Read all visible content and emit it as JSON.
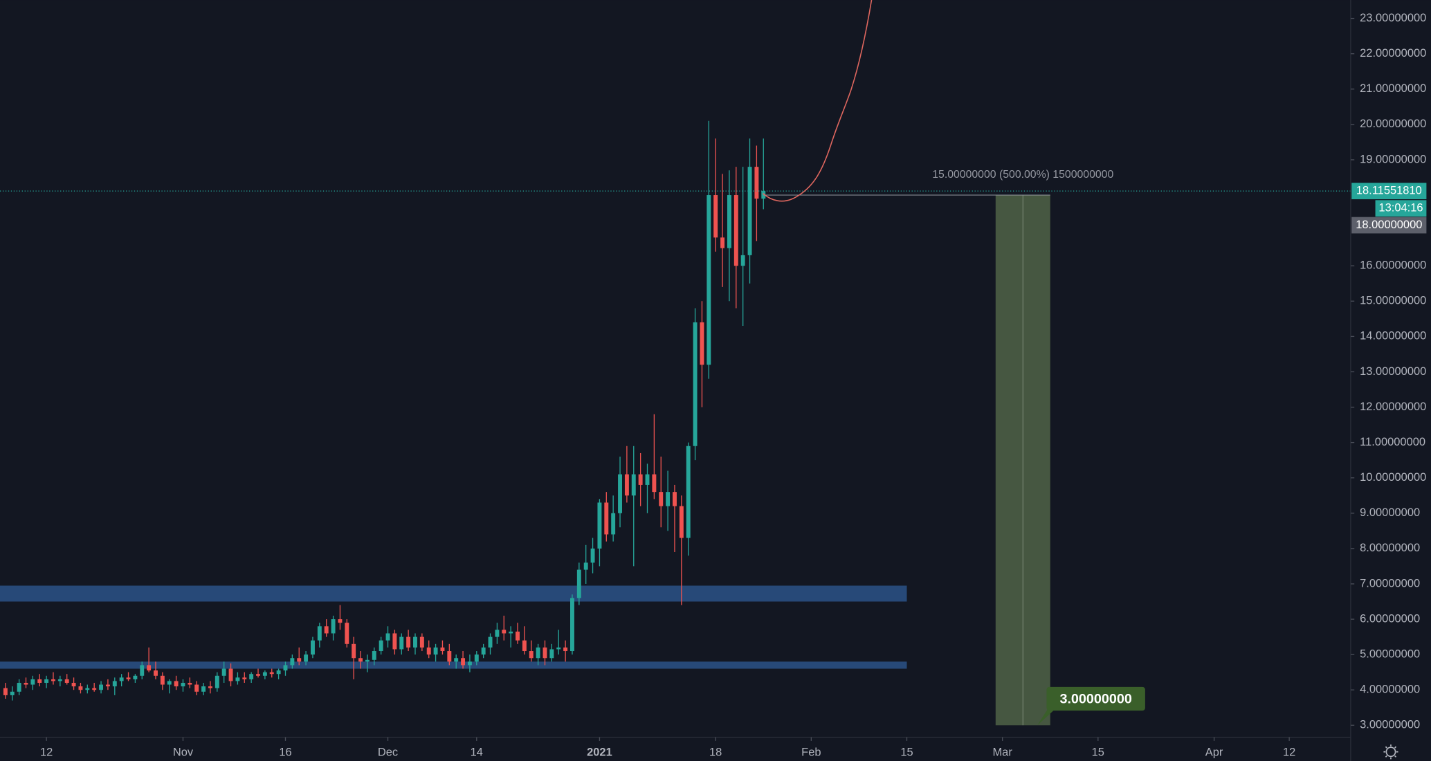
{
  "chart_data": {
    "type": "candlestick",
    "up_color": "#26a69a",
    "down_color": "#ef5350",
    "grid": false,
    "xlim": [
      -6.8,
      191
    ],
    "ylim": [
      2.66,
      23.52
    ],
    "yticks": [
      {
        "value": 3,
        "label": "3.00000000"
      },
      {
        "value": 4,
        "label": "4.00000000"
      },
      {
        "value": 5,
        "label": "5.00000000"
      },
      {
        "value": 6,
        "label": "6.00000000"
      },
      {
        "value": 7,
        "label": "7.00000000"
      },
      {
        "value": 8,
        "label": "8.00000000"
      },
      {
        "value": 9,
        "label": "9.00000000"
      },
      {
        "value": 10,
        "label": "10.00000000"
      },
      {
        "value": 11,
        "label": "11.00000000"
      },
      {
        "value": 12,
        "label": "12.00000000"
      },
      {
        "value": 13,
        "label": "13.00000000"
      },
      {
        "value": 14,
        "label": "14.00000000"
      },
      {
        "value": 15,
        "label": "15.00000000"
      },
      {
        "value": 16,
        "label": "16.00000000"
      },
      {
        "value": 19,
        "label": "19.00000000"
      },
      {
        "value": 20,
        "label": "20.00000000"
      },
      {
        "value": 21,
        "label": "21.00000000"
      },
      {
        "value": 22,
        "label": "22.00000000"
      },
      {
        "value": 23,
        "label": "23.00000000"
      }
    ],
    "xticks": [
      {
        "value": 0,
        "label": "12"
      },
      {
        "value": 20,
        "label": "Nov"
      },
      {
        "value": 35,
        "label": "16"
      },
      {
        "value": 50,
        "label": "Dec"
      },
      {
        "value": 63,
        "label": "14"
      },
      {
        "value": 81,
        "label": "2021"
      },
      {
        "value": 98,
        "label": "18"
      },
      {
        "value": 112,
        "label": "Feb"
      },
      {
        "value": 126,
        "label": "15"
      },
      {
        "value": 140,
        "label": "Mar"
      },
      {
        "value": 154,
        "label": "15"
      },
      {
        "value": 171,
        "label": "Apr"
      },
      {
        "value": 182,
        "label": "12"
      }
    ],
    "x": [
      -6,
      -5,
      -4,
      -3,
      -2,
      -1,
      0,
      1,
      2,
      3,
      4,
      5,
      6,
      7,
      8,
      9,
      10,
      11,
      12,
      13,
      14,
      15,
      16,
      17,
      18,
      19,
      20,
      21,
      22,
      23,
      24,
      25,
      26,
      27,
      28,
      29,
      30,
      31,
      32,
      33,
      34,
      35,
      36,
      37,
      38,
      39,
      40,
      41,
      42,
      43,
      44,
      45,
      46,
      47,
      48,
      49,
      50,
      51,
      52,
      53,
      54,
      55,
      56,
      57,
      58,
      59,
      60,
      61,
      62,
      63,
      64,
      65,
      66,
      67,
      68,
      69,
      70,
      71,
      72,
      73,
      74,
      75,
      76,
      77,
      78,
      79,
      80,
      81,
      82,
      83,
      84,
      85,
      86,
      87,
      88,
      89,
      90,
      91,
      92,
      93,
      94,
      95,
      96,
      97,
      98,
      99,
      100,
      101,
      102,
      103,
      104,
      105
    ],
    "open": [
      4.05,
      3.85,
      3.95,
      4.2,
      4.15,
      4.3,
      4.2,
      4.3,
      4.25,
      4.3,
      4.2,
      4.1,
      4.0,
      4.05,
      4.0,
      4.15,
      4.1,
      4.25,
      4.35,
      4.3,
      4.4,
      4.7,
      4.55,
      4.4,
      4.15,
      4.25,
      4.1,
      4.2,
      4.15,
      3.95,
      4.1,
      4.05,
      4.4,
      4.6,
      4.25,
      4.35,
      4.3,
      4.45,
      4.4,
      4.5,
      4.45,
      4.55,
      4.7,
      4.9,
      4.8,
      5.0,
      5.4,
      5.8,
      5.6,
      6.0,
      5.9,
      5.3,
      4.9,
      4.8,
      4.85,
      5.1,
      5.4,
      5.6,
      5.15,
      5.5,
      5.2,
      5.5,
      5.2,
      5.0,
      5.2,
      5.1,
      4.8,
      4.9,
      4.7,
      4.8,
      5.0,
      5.2,
      5.5,
      5.7,
      5.6,
      5.65,
      5.4,
      5.1,
      4.9,
      5.2,
      4.9,
      5.15,
      5.2,
      5.1,
      6.6,
      7.4,
      7.6,
      8.0,
      9.3,
      8.4,
      9.0,
      10.1,
      9.5,
      10.1,
      9.8,
      10.1,
      9.6,
      9.2,
      9.6,
      9.2,
      8.3,
      10.9,
      14.4,
      13.2,
      18.0,
      16.8,
      16.5,
      18.0,
      16.0,
      16.3,
      18.8,
      17.9
    ],
    "high": [
      4.2,
      4.1,
      4.3,
      4.35,
      4.4,
      4.45,
      4.4,
      4.5,
      4.4,
      4.45,
      4.35,
      4.2,
      4.15,
      4.2,
      4.25,
      4.3,
      4.35,
      4.45,
      4.5,
      4.45,
      4.8,
      5.2,
      4.8,
      4.5,
      4.3,
      4.4,
      4.3,
      4.35,
      4.25,
      4.2,
      4.25,
      4.5,
      4.8,
      4.75,
      4.5,
      4.5,
      4.5,
      4.6,
      4.55,
      4.6,
      4.6,
      4.8,
      5.0,
      5.2,
      5.1,
      5.5,
      5.9,
      6.0,
      6.1,
      6.4,
      6.0,
      5.5,
      5.1,
      5.0,
      5.2,
      5.5,
      5.8,
      5.7,
      5.6,
      5.7,
      5.6,
      5.6,
      5.4,
      5.3,
      5.4,
      5.3,
      5.0,
      5.1,
      5.0,
      5.1,
      5.3,
      5.6,
      5.9,
      6.1,
      5.8,
      5.9,
      5.8,
      5.4,
      5.3,
      5.4,
      5.3,
      5.7,
      5.4,
      6.7,
      7.6,
      8.1,
      8.3,
      9.4,
      9.6,
      9.5,
      10.6,
      10.9,
      10.9,
      10.7,
      10.4,
      11.8,
      10.6,
      10.2,
      9.8,
      9.5,
      11.0,
      14.8,
      15.0,
      20.1,
      19.6,
      18.6,
      18.7,
      18.8,
      18.8,
      19.6,
      19.4,
      19.6
    ],
    "low": [
      3.75,
      3.7,
      3.85,
      4.05,
      4.0,
      4.1,
      4.05,
      4.15,
      4.1,
      4.15,
      4.0,
      3.9,
      3.9,
      3.95,
      3.9,
      4.0,
      3.85,
      4.1,
      4.25,
      4.2,
      4.3,
      4.5,
      4.3,
      4.0,
      3.9,
      4.0,
      3.95,
      4.05,
      3.85,
      3.85,
      3.9,
      3.95,
      4.2,
      4.1,
      4.15,
      4.2,
      4.2,
      4.35,
      4.3,
      4.35,
      4.3,
      4.4,
      4.6,
      4.7,
      4.7,
      4.9,
      5.2,
      5.5,
      5.4,
      5.7,
      5.2,
      4.3,
      4.6,
      4.5,
      4.7,
      5.0,
      5.2,
      5.0,
      5.0,
      5.1,
      5.0,
      5.1,
      4.9,
      4.8,
      5.0,
      4.7,
      4.6,
      4.6,
      4.5,
      4.7,
      4.9,
      5.0,
      5.3,
      5.4,
      5.2,
      5.3,
      5.0,
      4.8,
      4.7,
      4.7,
      4.8,
      5.0,
      4.8,
      5.0,
      6.4,
      7.0,
      7.3,
      7.5,
      8.2,
      8.2,
      8.6,
      9.3,
      7.5,
      9.2,
      9.0,
      9.4,
      8.6,
      8.5,
      7.9,
      6.4,
      7.8,
      10.5,
      12.0,
      12.8,
      16.4,
      15.4,
      15.0,
      14.8,
      14.3,
      15.5,
      16.7,
      17.6
    ],
    "close": [
      3.85,
      3.95,
      4.2,
      4.15,
      4.3,
      4.2,
      4.3,
      4.25,
      4.3,
      4.2,
      4.1,
      4.0,
      4.05,
      4.0,
      4.15,
      4.1,
      4.25,
      4.35,
      4.3,
      4.4,
      4.7,
      4.55,
      4.4,
      4.15,
      4.25,
      4.1,
      4.2,
      4.15,
      3.95,
      4.1,
      4.05,
      4.4,
      4.6,
      4.25,
      4.35,
      4.3,
      4.45,
      4.4,
      4.5,
      4.45,
      4.55,
      4.7,
      4.9,
      4.8,
      5.0,
      5.4,
      5.8,
      5.6,
      6.0,
      5.9,
      5.3,
      4.9,
      4.8,
      4.85,
      5.1,
      5.4,
      5.6,
      5.15,
      5.5,
      5.2,
      5.5,
      5.2,
      5.0,
      5.2,
      5.1,
      4.8,
      4.9,
      4.7,
      4.8,
      5.0,
      5.2,
      5.5,
      5.7,
      5.6,
      5.65,
      5.4,
      5.1,
      4.9,
      5.2,
      4.9,
      5.15,
      5.2,
      5.1,
      6.6,
      7.4,
      7.6,
      8.0,
      9.3,
      8.4,
      9.0,
      10.1,
      9.5,
      10.1,
      9.8,
      10.1,
      9.6,
      9.2,
      9.6,
      9.2,
      8.3,
      10.9,
      14.4,
      13.2,
      18.0,
      16.8,
      16.5,
      18.0,
      16.0,
      16.3,
      18.8,
      17.9,
      18.1155181
    ],
    "zones": [
      {
        "low": 6.5,
        "high": 6.95,
        "x_end": 126,
        "color": "#2a4f82"
      },
      {
        "low": 4.6,
        "high": 4.8,
        "x_end": 126,
        "color": "#2a4f82"
      }
    ],
    "position": {
      "top": {
        "value": 18,
        "label": "18.00000000"
      },
      "bottom": {
        "value": 3,
        "label": "3.00000000"
      },
      "x_start": 139,
      "x_end": 147,
      "color": "#4c5e45",
      "summary": "15.00000000 (500.00%) 1500000000"
    },
    "last_price": {
      "value": 18.1155181,
      "label": "18.11551810"
    },
    "countdown": "13:04:16"
  }
}
